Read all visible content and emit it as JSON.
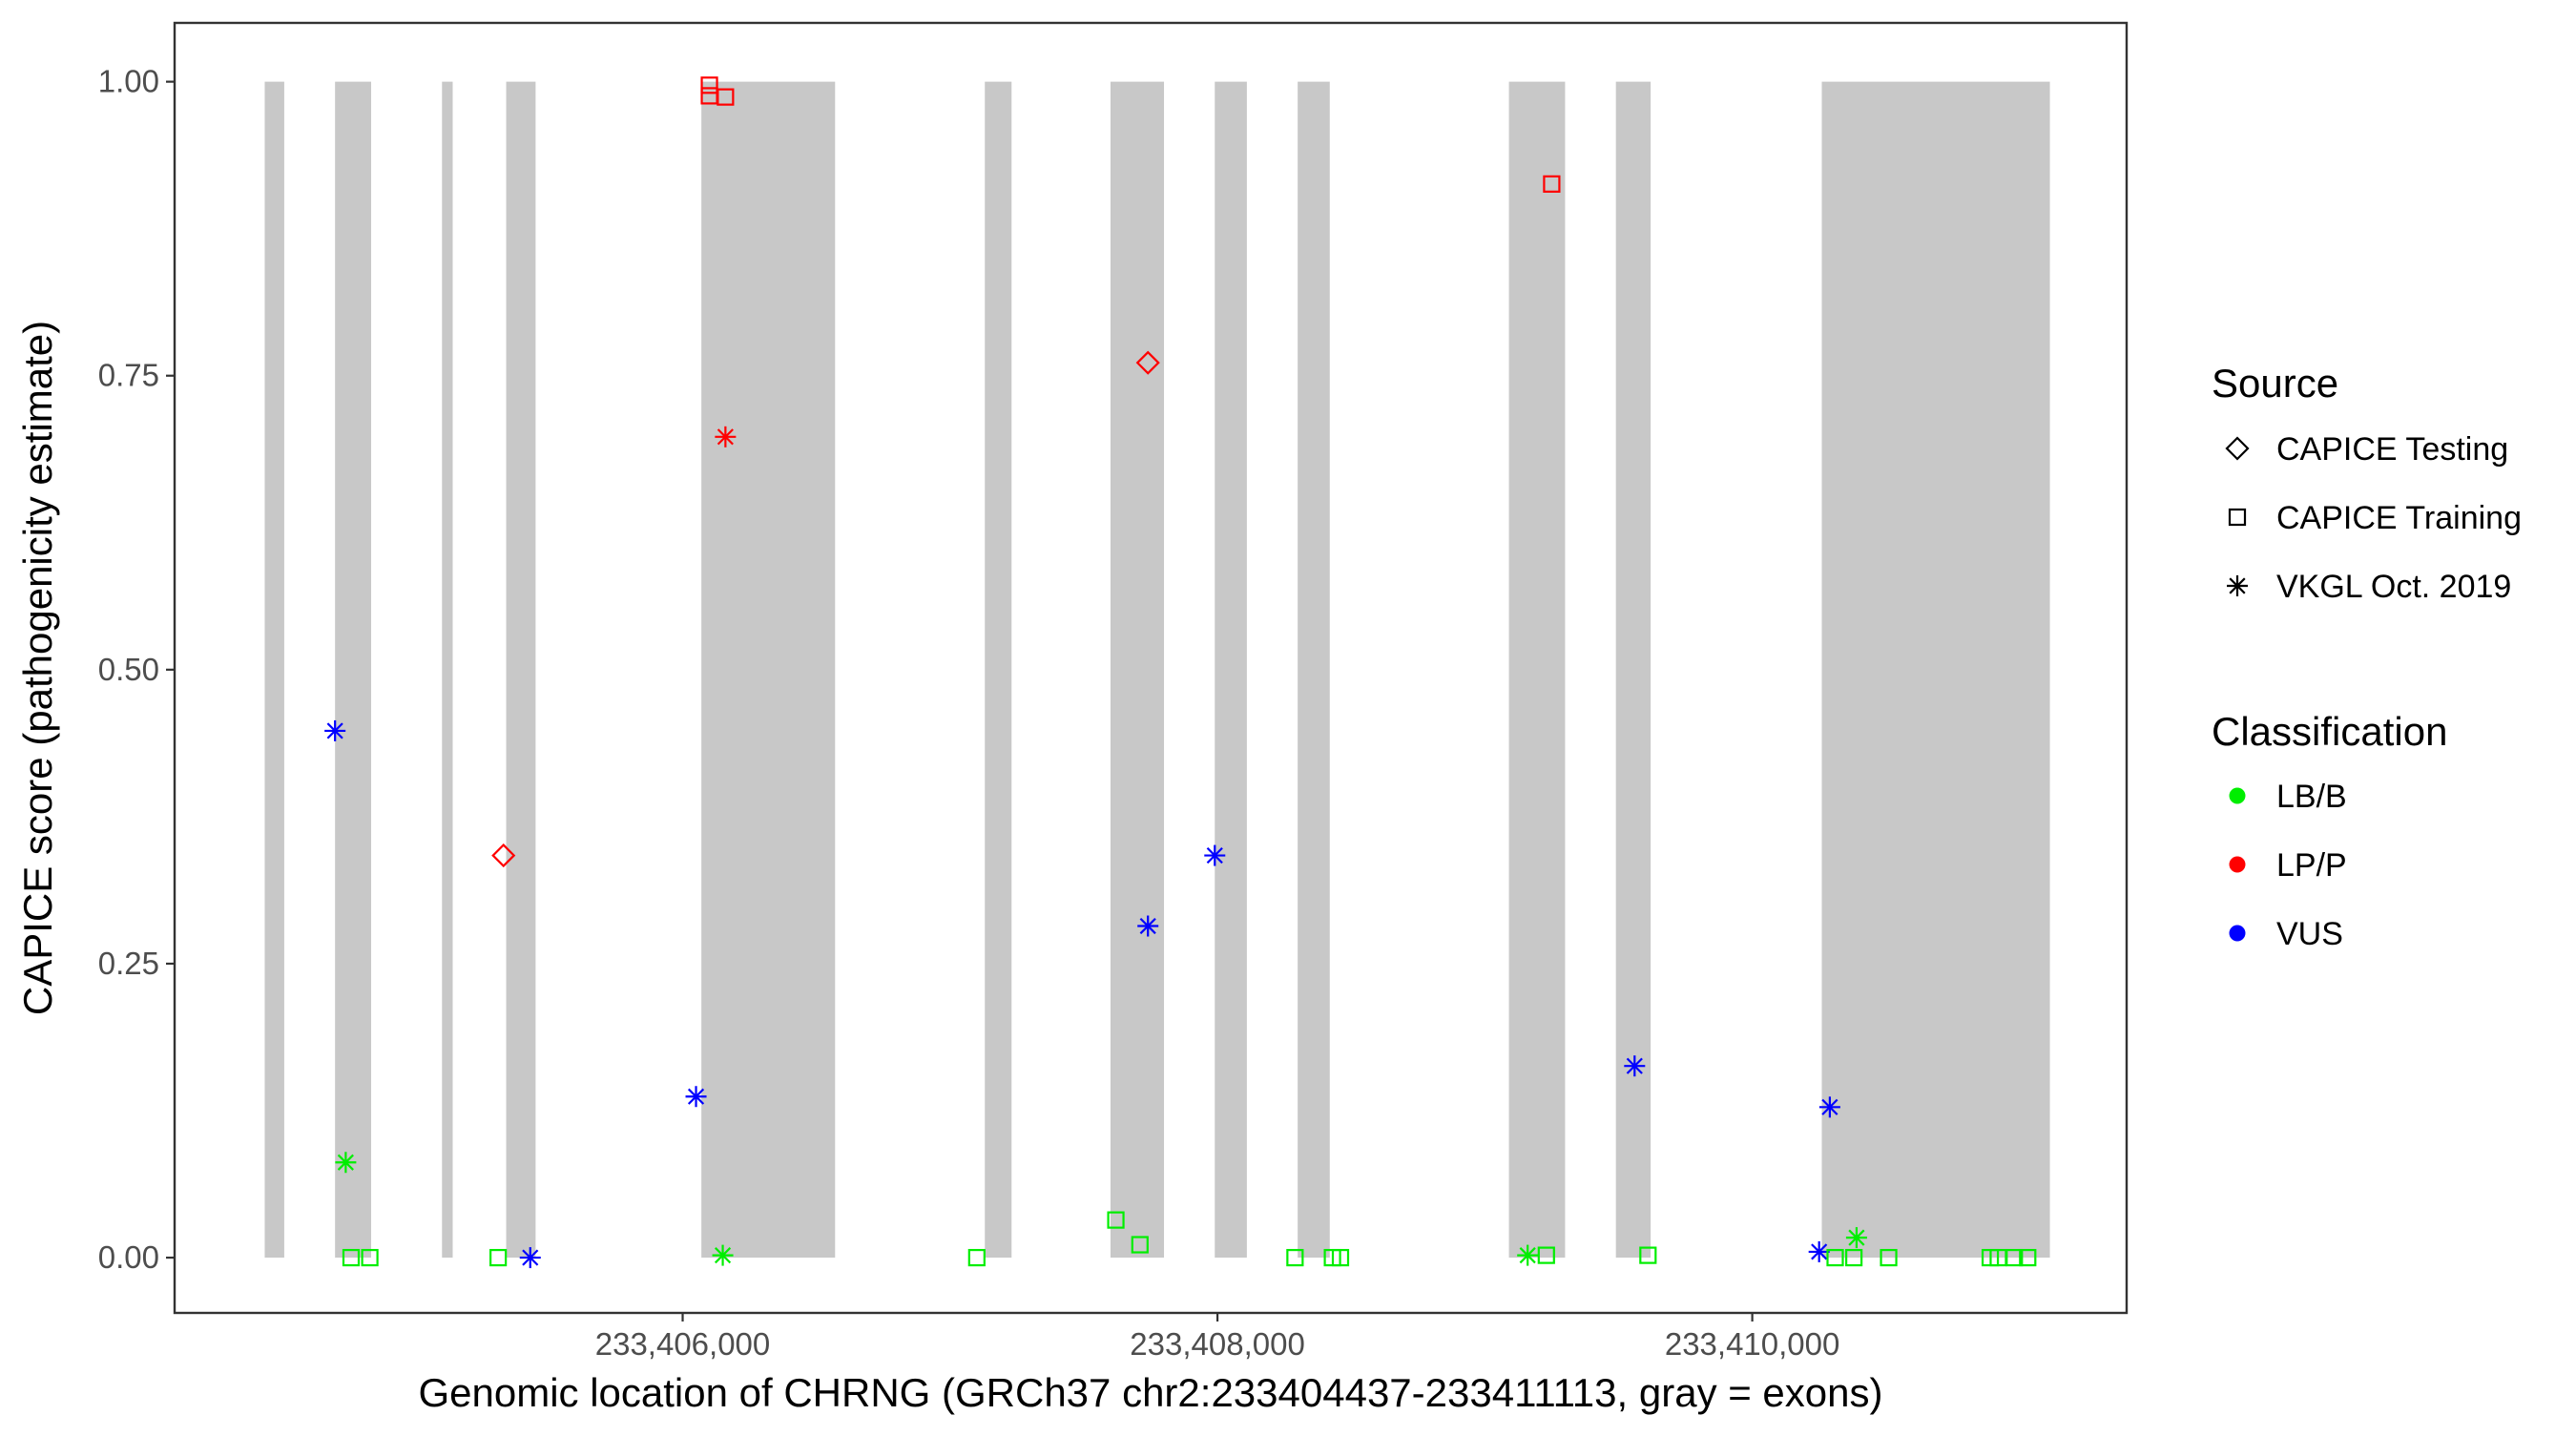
{
  "chart_data": {
    "type": "scatter",
    "title": "",
    "xlabel": "Genomic location of CHRNG (GRCh37 chr2:233404437-233411113, gray = exons)",
    "ylabel": "CAPICE score (pathogenicity estimate)",
    "xlim": [
      233404100,
      233411400
    ],
    "ylim": [
      -0.047,
      1.05
    ],
    "x_ticks": [
      233406000,
      233408000,
      233410000
    ],
    "x_tick_labels": [
      "233,406,000",
      "233,408,000",
      "233,410,000"
    ],
    "y_ticks": [
      0,
      0.25,
      0.5,
      0.75,
      1.0
    ],
    "y_tick_labels": [
      "0.00",
      "0.25",
      "0.50",
      "0.75",
      "1.00"
    ],
    "grid": false,
    "exons": [
      [
        233404437,
        233404510
      ],
      [
        233404700,
        233404835
      ],
      [
        233405100,
        233405140
      ],
      [
        233405340,
        233405450
      ],
      [
        233406070,
        233406570
      ],
      [
        233407130,
        233407230
      ],
      [
        233407600,
        233407800
      ],
      [
        233407990,
        233408110
      ],
      [
        233408300,
        233408420
      ],
      [
        233409090,
        233409300
      ],
      [
        233409490,
        233409620
      ],
      [
        233410260,
        233411113
      ]
    ],
    "sources": [
      {
        "name": "CAPICE Testing",
        "shape": "diamond"
      },
      {
        "name": "CAPICE Training",
        "shape": "square"
      },
      {
        "name": "VKGL Oct. 2019",
        "shape": "asterisk"
      }
    ],
    "classifications": [
      {
        "name": "LB/B",
        "color": "#00ee00"
      },
      {
        "name": "LP/P",
        "color": "#ff0000"
      },
      {
        "name": "VUS",
        "color": "#0000ff"
      }
    ],
    "points": [
      {
        "x": 233404700,
        "y": 0.448,
        "source": "VKGL Oct. 2019",
        "class": "VUS"
      },
      {
        "x": 233404740,
        "y": 0.081,
        "source": "VKGL Oct. 2019",
        "class": "LB/B"
      },
      {
        "x": 233404760,
        "y": 0.0,
        "source": "CAPICE Training",
        "class": "LB/B"
      },
      {
        "x": 233404830,
        "y": 0.0,
        "source": "CAPICE Training",
        "class": "LB/B"
      },
      {
        "x": 233405310,
        "y": 0.0,
        "source": "CAPICE Training",
        "class": "LB/B"
      },
      {
        "x": 233405330,
        "y": 0.342,
        "source": "CAPICE Testing",
        "class": "LP/P"
      },
      {
        "x": 233405430,
        "y": 0.0,
        "source": "VKGL Oct. 2019",
        "class": "VUS"
      },
      {
        "x": 233406050,
        "y": 0.137,
        "source": "VKGL Oct. 2019",
        "class": "VUS"
      },
      {
        "x": 233406100,
        "y": 0.997,
        "source": "CAPICE Training",
        "class": "LP/P"
      },
      {
        "x": 233406100,
        "y": 0.988,
        "source": "CAPICE Training",
        "class": "LP/P"
      },
      {
        "x": 233406160,
        "y": 0.987,
        "source": "CAPICE Training",
        "class": "LP/P"
      },
      {
        "x": 233406160,
        "y": 0.698,
        "source": "VKGL Oct. 2019",
        "class": "LP/P"
      },
      {
        "x": 233406150,
        "y": 0.002,
        "source": "VKGL Oct. 2019",
        "class": "LB/B"
      },
      {
        "x": 233407100,
        "y": 0.0,
        "source": "CAPICE Training",
        "class": "LB/B"
      },
      {
        "x": 233407620,
        "y": 0.032,
        "source": "CAPICE Training",
        "class": "LB/B"
      },
      {
        "x": 233407710,
        "y": 0.011,
        "source": "CAPICE Training",
        "class": "LB/B"
      },
      {
        "x": 233407740,
        "y": 0.761,
        "source": "CAPICE Testing",
        "class": "LP/P"
      },
      {
        "x": 233407740,
        "y": 0.282,
        "source": "VKGL Oct. 2019",
        "class": "VUS"
      },
      {
        "x": 233407990,
        "y": 0.342,
        "source": "VKGL Oct. 2019",
        "class": "VUS"
      },
      {
        "x": 233408290,
        "y": 0.0,
        "source": "CAPICE Training",
        "class": "LB/B"
      },
      {
        "x": 233408430,
        "y": 0.0,
        "source": "CAPICE Training",
        "class": "LB/B"
      },
      {
        "x": 233408460,
        "y": 0.0,
        "source": "CAPICE Training",
        "class": "LB/B"
      },
      {
        "x": 233409160,
        "y": 0.002,
        "source": "VKGL Oct. 2019",
        "class": "LB/B"
      },
      {
        "x": 233409230,
        "y": 0.002,
        "source": "CAPICE Training",
        "class": "LB/B"
      },
      {
        "x": 233409250,
        "y": 0.913,
        "source": "CAPICE Training",
        "class": "LP/P"
      },
      {
        "x": 233409560,
        "y": 0.163,
        "source": "VKGL Oct. 2019",
        "class": "VUS"
      },
      {
        "x": 233409610,
        "y": 0.002,
        "source": "CAPICE Training",
        "class": "LB/B"
      },
      {
        "x": 233410250,
        "y": 0.005,
        "source": "VKGL Oct. 2019",
        "class": "VUS"
      },
      {
        "x": 233410290,
        "y": 0.128,
        "source": "VKGL Oct. 2019",
        "class": "VUS"
      },
      {
        "x": 233410310,
        "y": 0.0,
        "source": "CAPICE Training",
        "class": "LB/B"
      },
      {
        "x": 233410380,
        "y": 0.0,
        "source": "CAPICE Training",
        "class": "LB/B"
      },
      {
        "x": 233410390,
        "y": 0.017,
        "source": "VKGL Oct. 2019",
        "class": "LB/B"
      },
      {
        "x": 233410510,
        "y": 0.0,
        "source": "CAPICE Training",
        "class": "LB/B"
      },
      {
        "x": 233410890,
        "y": 0.0,
        "source": "CAPICE Training",
        "class": "LB/B"
      },
      {
        "x": 233410920,
        "y": 0.0,
        "source": "CAPICE Training",
        "class": "LB/B"
      },
      {
        "x": 233410980,
        "y": 0.0,
        "source": "CAPICE Training",
        "class": "LB/B"
      },
      {
        "x": 233411030,
        "y": 0.0,
        "source": "CAPICE Training",
        "class": "LB/B"
      }
    ],
    "legend": {
      "position": "right",
      "source_title": "Source",
      "classification_title": "Classification"
    }
  }
}
